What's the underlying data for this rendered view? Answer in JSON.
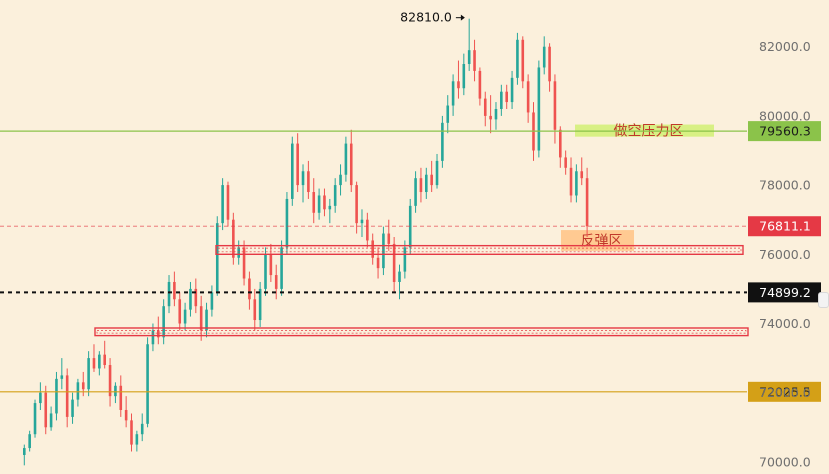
{
  "chart_data": {
    "type": "candlestick",
    "title": "",
    "xlabel": "",
    "ylabel": "",
    "y_axis_position": "right",
    "ylim": [
      69650,
      83350
    ],
    "y_ticks": [
      70000,
      72000,
      74000,
      76000,
      78000,
      80000,
      82000
    ],
    "y_tick_labels": [
      "70000.0",
      "72000.0",
      "74000.0",
      "76000.0",
      "78000.0",
      "80000.0",
      "82000.0"
    ],
    "colors": {
      "up": "#26a69a",
      "down": "#ef5350"
    },
    "peak_annotation": {
      "label": "82810.0",
      "value": 82810
    },
    "horizontal_lines": [
      {
        "name": "resistance",
        "value": 79560.3,
        "label": "79560.3",
        "color": "#8bc34a",
        "style": "solid"
      },
      {
        "name": "current-price",
        "value": 76811.1,
        "label": "76811.1",
        "color": "#e53945",
        "style": "dashed"
      },
      {
        "name": "black-level",
        "value": 74899.2,
        "label": "74899.2",
        "color": "#111111",
        "style": "dashed"
      },
      {
        "name": "support",
        "value": 72025.5,
        "label": "72025.5",
        "color": "#d4a017",
        "style": "solid"
      }
    ],
    "zones": [
      {
        "name": "short-pressure-zone",
        "label": "做空压力区",
        "from": 79400,
        "to": 79750,
        "color": "#d4f07a"
      },
      {
        "name": "rebound-zone",
        "label": "反弹区",
        "from": 76100,
        "to": 76700,
        "color": "#ffc58a"
      }
    ],
    "level_boxes": [
      {
        "name": "upper-level-box",
        "from": 76000,
        "to": 76250
      },
      {
        "name": "lower-level-box",
        "from": 73650,
        "to": 73870
      }
    ],
    "candles": [
      [
        70200,
        70500,
        69900,
        70400
      ],
      [
        70400,
        70900,
        70300,
        70800
      ],
      [
        70800,
        71800,
        70700,
        71700
      ],
      [
        71700,
        72300,
        71500,
        72000
      ],
      [
        72000,
        72200,
        70800,
        71000
      ],
      [
        71000,
        71600,
        70900,
        71400
      ],
      [
        71400,
        72600,
        71200,
        72400
      ],
      [
        72400,
        73000,
        72100,
        72500
      ],
      [
        72500,
        72700,
        71000,
        71300
      ],
      [
        71300,
        72000,
        71100,
        71800
      ],
      [
        71800,
        72400,
        71600,
        72300
      ],
      [
        72300,
        72600,
        71900,
        72100
      ],
      [
        72100,
        73200,
        71900,
        73000
      ],
      [
        73000,
        73400,
        72600,
        72700
      ],
      [
        72700,
        73200,
        72500,
        73100
      ],
      [
        73100,
        73500,
        72700,
        72800
      ],
      [
        72800,
        73000,
        71600,
        71900
      ],
      [
        71900,
        72300,
        71700,
        72200
      ],
      [
        72200,
        72500,
        71300,
        71500
      ],
      [
        71500,
        71900,
        71000,
        71200
      ],
      [
        71200,
        71400,
        70300,
        70500
      ],
      [
        70500,
        70900,
        70300,
        70800
      ],
      [
        70800,
        71400,
        70600,
        71100
      ],
      [
        71100,
        73600,
        71000,
        73400
      ],
      [
        73400,
        74000,
        73200,
        73800
      ],
      [
        73800,
        74200,
        73400,
        73600
      ],
      [
        73600,
        74700,
        73400,
        74500
      ],
      [
        74500,
        75400,
        74300,
        75200
      ],
      [
        75200,
        75500,
        74500,
        74700
      ],
      [
        74700,
        74900,
        73800,
        74000
      ],
      [
        74000,
        74600,
        73800,
        74400
      ],
      [
        74400,
        75200,
        74200,
        75000
      ],
      [
        75000,
        75300,
        74300,
        74500
      ],
      [
        74500,
        74800,
        73500,
        73800
      ],
      [
        73800,
        74600,
        73600,
        74400
      ],
      [
        74400,
        75100,
        74200,
        74900
      ],
      [
        74900,
        77100,
        74800,
        76900
      ],
      [
        76900,
        78200,
        76700,
        78000
      ],
      [
        78000,
        78100,
        76800,
        77000
      ],
      [
        77000,
        77200,
        75700,
        75900
      ],
      [
        75900,
        76400,
        75700,
        76200
      ],
      [
        76200,
        76400,
        75100,
        75300
      ],
      [
        75300,
        75500,
        74400,
        74700
      ],
      [
        74700,
        75000,
        73800,
        74100
      ],
      [
        74100,
        75200,
        73900,
        75000
      ],
      [
        75000,
        76200,
        74800,
        76000
      ],
      [
        76000,
        76300,
        75200,
        75400
      ],
      [
        75400,
        75700,
        74700,
        75000
      ],
      [
        75000,
        76400,
        74800,
        76200
      ],
      [
        76200,
        77800,
        76000,
        77600
      ],
      [
        77600,
        79400,
        77400,
        79200
      ],
      [
        79200,
        79500,
        77800,
        78000
      ],
      [
        78000,
        78600,
        77500,
        78400
      ],
      [
        78400,
        78700,
        77600,
        77800
      ],
      [
        77800,
        78200,
        76900,
        77200
      ],
      [
        77200,
        77900,
        77000,
        77700
      ],
      [
        77700,
        77900,
        77100,
        77300
      ],
      [
        77300,
        77600,
        76900,
        77400
      ],
      [
        77400,
        78200,
        77200,
        78000
      ],
      [
        78000,
        78600,
        77700,
        78300
      ],
      [
        78300,
        79400,
        78100,
        79200
      ],
      [
        79200,
        79600,
        77800,
        78000
      ],
      [
        78000,
        78100,
        76600,
        76900
      ],
      [
        76900,
        77300,
        76500,
        77000
      ],
      [
        77000,
        77200,
        76200,
        76400
      ],
      [
        76400,
        76600,
        75700,
        75900
      ],
      [
        75900,
        76200,
        75300,
        75600
      ],
      [
        75600,
        76800,
        75400,
        76600
      ],
      [
        76600,
        77000,
        76100,
        76300
      ],
      [
        76300,
        76500,
        74900,
        75200
      ],
      [
        75200,
        75700,
        74700,
        75500
      ],
      [
        75500,
        76400,
        75300,
        76200
      ],
      [
        76200,
        77600,
        76000,
        77400
      ],
      [
        77400,
        78400,
        77200,
        78200
      ],
      [
        78200,
        78500,
        77500,
        77800
      ],
      [
        77800,
        78500,
        77600,
        78300
      ],
      [
        78300,
        78700,
        77800,
        78000
      ],
      [
        78000,
        78900,
        77900,
        78700
      ],
      [
        78700,
        80000,
        78500,
        79800
      ],
      [
        79800,
        80600,
        79500,
        80300
      ],
      [
        80300,
        81200,
        80000,
        81000
      ],
      [
        81000,
        81600,
        80500,
        80800
      ],
      [
        80800,
        81800,
        80600,
        81500
      ],
      [
        81500,
        82810,
        81300,
        81900
      ],
      [
        81900,
        82200,
        81000,
        81300
      ],
      [
        81300,
        81400,
        80300,
        80500
      ],
      [
        80500,
        80700,
        79700,
        80000
      ],
      [
        80000,
        80600,
        79500,
        79900
      ],
      [
        79900,
        80400,
        79600,
        80200
      ],
      [
        80200,
        80900,
        80000,
        80700
      ],
      [
        80700,
        80900,
        80200,
        80400
      ],
      [
        80400,
        81300,
        80200,
        81100
      ],
      [
        81100,
        82400,
        80900,
        82200
      ],
      [
        82200,
        82300,
        80800,
        81000
      ],
      [
        81000,
        81200,
        79800,
        80100
      ],
      [
        80100,
        80400,
        78700,
        79000
      ],
      [
        79000,
        81600,
        78800,
        81400
      ],
      [
        81400,
        82300,
        81200,
        82000
      ],
      [
        82000,
        82100,
        80700,
        81000
      ],
      [
        81000,
        81200,
        79200,
        79600
      ],
      [
        79600,
        79700,
        78500,
        78800
      ],
      [
        78800,
        79000,
        78300,
        78500
      ],
      [
        78500,
        78800,
        77500,
        77700
      ],
      [
        77700,
        78600,
        77500,
        78400
      ],
      [
        78400,
        78800,
        78000,
        78200
      ],
      [
        78200,
        78500,
        76500,
        76811
      ]
    ]
  }
}
